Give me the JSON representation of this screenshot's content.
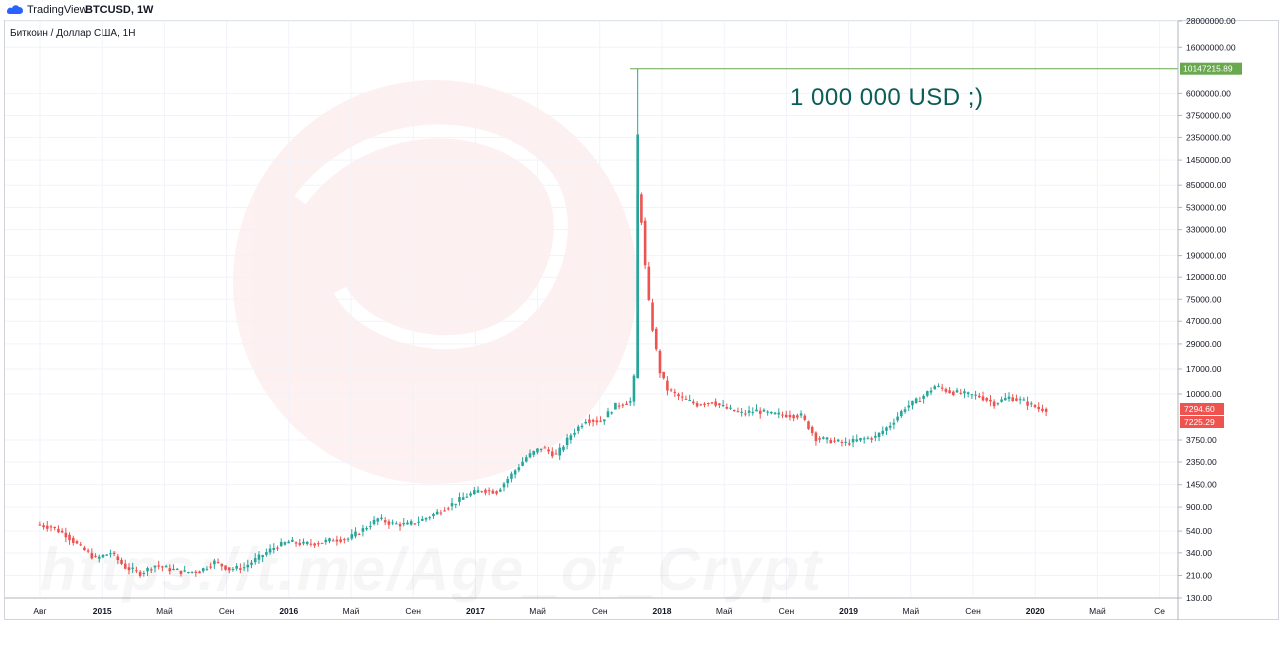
{
  "header": {
    "brand": "TradingView",
    "symbol": "BTCUSD, 1W",
    "legend": "Биткоин / Доллар США, 1Н"
  },
  "annotation": {
    "text": "1 000 000 USD    ;)"
  },
  "watermark": {
    "text": "https://t.me/Age_of_Crypt"
  },
  "colors": {
    "up": "#26a69a",
    "down": "#ef5350",
    "grid": "#f0f3fa",
    "marker_line": "#6aa84f",
    "marker_badge": "#6aa84f",
    "last_price_badge": "#ef5350"
  },
  "chart_data": {
    "type": "candlestick",
    "scale": "log",
    "ylim": [
      130,
      28000000
    ],
    "y_ticks": [
      "28000000.00",
      "16000000.00",
      "6000000.00",
      "3750000.00",
      "2350000.00",
      "1450000.00",
      "850000.00",
      "530000.00",
      "330000.00",
      "190000.00",
      "120000.00",
      "75000.00",
      "47000.00",
      "29000.00",
      "17000.00",
      "10000.00",
      "3750.00",
      "2350.00",
      "1450.00",
      "900.00",
      "540.00",
      "340.00",
      "210.00",
      "130.00"
    ],
    "x_ticks": [
      {
        "label": "Авг",
        "year": false
      },
      {
        "label": "2015",
        "year": true
      },
      {
        "label": "Май",
        "year": false
      },
      {
        "label": "Сен",
        "year": false
      },
      {
        "label": "2016",
        "year": true
      },
      {
        "label": "Май",
        "year": false
      },
      {
        "label": "Сен",
        "year": false
      },
      {
        "label": "2017",
        "year": true
      },
      {
        "label": "Май",
        "year": false
      },
      {
        "label": "Сен",
        "year": false
      },
      {
        "label": "2018",
        "year": true
      },
      {
        "label": "Май",
        "year": false
      },
      {
        "label": "Сен",
        "year": false
      },
      {
        "label": "2019",
        "year": true
      },
      {
        "label": "Май",
        "year": false
      },
      {
        "label": "Сен",
        "year": false
      },
      {
        "label": "2020",
        "year": true
      },
      {
        "label": "Май",
        "year": false
      },
      {
        "label": "Се",
        "year": false
      }
    ],
    "marker_price": "10147215.89",
    "marker_price_value": 10147215.89,
    "last_prices": [
      "7294.60",
      "7225.29"
    ],
    "price_path": [
      [
        0,
        620
      ],
      [
        4,
        590
      ],
      [
        8,
        500
      ],
      [
        12,
        380
      ],
      [
        16,
        300
      ],
      [
        20,
        340
      ],
      [
        24,
        250
      ],
      [
        28,
        220
      ],
      [
        32,
        260
      ],
      [
        36,
        240
      ],
      [
        40,
        225
      ],
      [
        44,
        230
      ],
      [
        48,
        280
      ],
      [
        52,
        240
      ],
      [
        56,
        250
      ],
      [
        60,
        310
      ],
      [
        64,
        380
      ],
      [
        68,
        430
      ],
      [
        72,
        410
      ],
      [
        76,
        420
      ],
      [
        80,
        450
      ],
      [
        84,
        460
      ],
      [
        88,
        560
      ],
      [
        92,
        700
      ],
      [
        96,
        630
      ],
      [
        100,
        620
      ],
      [
        104,
        690
      ],
      [
        108,
        800
      ],
      [
        112,
        960
      ],
      [
        116,
        1150
      ],
      [
        120,
        1300
      ],
      [
        124,
        1250
      ],
      [
        128,
        1800
      ],
      [
        132,
        2600
      ],
      [
        136,
        3200
      ],
      [
        140,
        2700
      ],
      [
        144,
        4200
      ],
      [
        148,
        5800
      ],
      [
        152,
        5600
      ],
      [
        156,
        7800
      ],
      [
        160,
        8500
      ],
      [
        161,
        14000
      ],
      [
        162,
        700000
      ],
      [
        163,
        400000
      ],
      [
        164,
        150000
      ],
      [
        165,
        70000
      ],
      [
        166,
        40000
      ],
      [
        167,
        25000
      ],
      [
        168,
        16000
      ],
      [
        170,
        11000
      ],
      [
        174,
        9000
      ],
      [
        178,
        8000
      ],
      [
        182,
        8500
      ],
      [
        186,
        7300
      ],
      [
        190,
        6600
      ],
      [
        194,
        7000
      ],
      [
        198,
        6500
      ],
      [
        202,
        6400
      ],
      [
        206,
        6300
      ],
      [
        210,
        3900
      ],
      [
        214,
        3700
      ],
      [
        218,
        3500
      ],
      [
        222,
        3800
      ],
      [
        226,
        4000
      ],
      [
        230,
        5200
      ],
      [
        234,
        7500
      ],
      [
        238,
        9000
      ],
      [
        242,
        11800
      ],
      [
        246,
        10500
      ],
      [
        250,
        10000
      ],
      [
        254,
        9500
      ],
      [
        258,
        8200
      ],
      [
        262,
        9300
      ],
      [
        266,
        8500
      ],
      [
        270,
        7300
      ],
      [
        272,
        7250
      ]
    ]
  }
}
